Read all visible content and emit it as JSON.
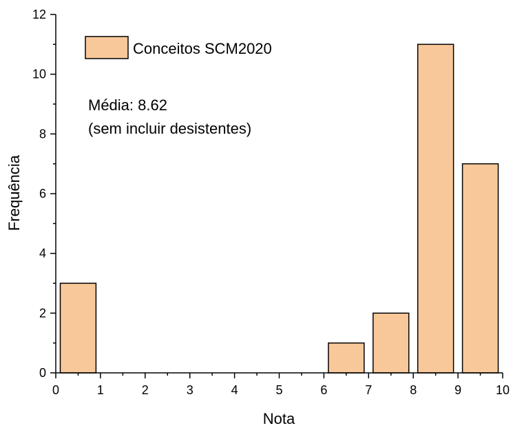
{
  "chart_data": {
    "type": "bar",
    "xlabel": "Nota",
    "ylabel": "Frequência",
    "xlim": [
      0,
      10
    ],
    "ylim": [
      0,
      12
    ],
    "x_ticks": [
      "0",
      "1",
      "2",
      "3",
      "4",
      "5",
      "6",
      "7",
      "8",
      "9",
      "10"
    ],
    "y_ticks": [
      "0",
      "2",
      "4",
      "6",
      "8",
      "10",
      "12"
    ],
    "series": [
      {
        "name": "Conceitos SCM2020",
        "color": "#F9C89A",
        "bins": [
          {
            "from": 0,
            "to": 1,
            "value": 3
          },
          {
            "from": 6,
            "to": 7,
            "value": 1
          },
          {
            "from": 7,
            "to": 8,
            "value": 2
          },
          {
            "from": 8,
            "to": 9,
            "value": 11
          },
          {
            "from": 9,
            "to": 10,
            "value": 7
          }
        ]
      }
    ],
    "annotations": [
      "Média: 8.62",
      "(sem incluir desistentes)"
    ],
    "legend_position": "top-left",
    "grid": false
  }
}
